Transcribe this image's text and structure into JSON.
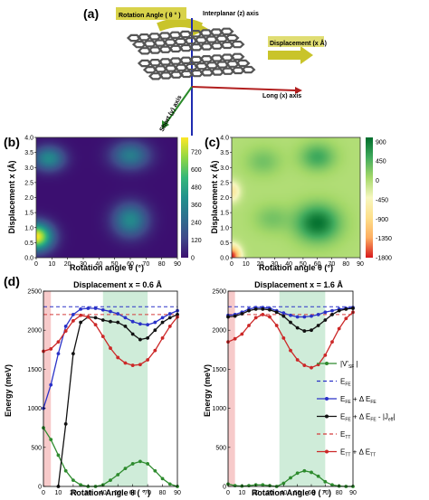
{
  "panel_a": {
    "letter": "(a)",
    "labels": {
      "rotation": "Rotation Angle ( θ ° )",
      "interplanar": "Interplanar (z) axis",
      "displacement": "Displacement (x Å)",
      "long_axis": "Long (x) axis",
      "short_axis": "Short (y) axis"
    },
    "colors": {
      "rotation_arrow": "#c9c42a",
      "z_axis": "#1f2bb0",
      "x_axis": "#b21f1f",
      "y_axis": "#2a8a2a"
    }
  },
  "chart_data": [
    {
      "id": "b",
      "letter": "(b)",
      "type": "heatmap",
      "xlabel": "Rotation angle θ (°)",
      "ylabel": "Displacement x (Å)",
      "x_ticks": [
        0,
        10,
        20,
        30,
        40,
        50,
        60,
        70,
        80,
        90
      ],
      "y_ticks": [
        "0.0",
        "0.5",
        "1.0",
        "1.5",
        "2.0",
        "2.5",
        "3.0",
        "3.5",
        "4.0"
      ],
      "xlim": [
        0,
        90
      ],
      "ylim": [
        0.0,
        4.0
      ],
      "colorbar": {
        "ticks": [
          0,
          120,
          240,
          360,
          480,
          600,
          720
        ],
        "range": [
          0,
          820
        ],
        "colors": [
          "#3b0f70",
          "#3f4a8a",
          "#2e6f8e",
          "#21918c",
          "#35b779",
          "#90d743",
          "#fde725"
        ]
      },
      "blobs": [
        {
          "x": 0,
          "y": 0.7,
          "value": 820,
          "sx": 10,
          "sy": 0.45
        },
        {
          "x": 8,
          "y": 3.3,
          "value": 380,
          "sx": 10,
          "sy": 0.4
        },
        {
          "x": 60,
          "y": 3.4,
          "value": 330,
          "sx": 12,
          "sy": 0.45
        },
        {
          "x": 60,
          "y": 1.25,
          "value": 380,
          "sx": 11,
          "sy": 0.55
        }
      ]
    },
    {
      "id": "c",
      "letter": "(c)",
      "type": "heatmap",
      "xlabel": "Rotation angle θ (°)",
      "ylabel": "Displacement x (Å)",
      "x_ticks": [
        0,
        10,
        20,
        30,
        40,
        50,
        60,
        70,
        80,
        90
      ],
      "y_ticks": [
        "0.0",
        "0.5",
        "1.0",
        "1.5",
        "2.0",
        "2.5",
        "3.0",
        "3.5",
        "4.0"
      ],
      "xlim": [
        0,
        90
      ],
      "ylim": [
        0.0,
        4.0
      ],
      "colorbar": {
        "ticks": [
          900,
          450,
          0,
          -450,
          -900,
          -1350,
          -1800
        ],
        "range": [
          -1800,
          1000
        ],
        "colors": [
          "#d7191c",
          "#fdae61",
          "#fee08b",
          "#f7f7c0",
          "#a6d96a",
          "#41ab5d",
          "#006d2c"
        ]
      },
      "blobs": [
        {
          "x": 0,
          "y": 0.05,
          "value": -1800,
          "sx": 6,
          "sy": 0.35
        },
        {
          "x": 0,
          "y": 2.2,
          "value": -700,
          "sx": 6,
          "sy": 0.35
        },
        {
          "x": 60,
          "y": 1.15,
          "value": 950,
          "sx": 15,
          "sy": 0.6
        },
        {
          "x": 60,
          "y": 3.35,
          "value": 550,
          "sx": 12,
          "sy": 0.45
        },
        {
          "x": 22,
          "y": 3.2,
          "value": 300,
          "sx": 12,
          "sy": 0.45
        },
        {
          "x": 28,
          "y": 1.3,
          "value": 280,
          "sx": 12,
          "sy": 0.45
        }
      ]
    },
    {
      "id": "d1",
      "letter": "(d)",
      "type": "line",
      "title": "Displacement x = 0.6 Å",
      "xlabel": "Rotation Angle θ ( ° )",
      "ylabel": "Energy (meV)",
      "x_ticks": [
        0,
        10,
        20,
        30,
        40,
        50,
        60,
        70,
        80,
        90
      ],
      "y_ticks": [
        0,
        500,
        1000,
        1500,
        2000,
        2500
      ],
      "xlim": [
        0,
        90
      ],
      "ylim": [
        0,
        2500
      ],
      "shade_red": [
        0,
        5
      ],
      "shade_green": [
        40,
        70
      ],
      "dashed": [
        {
          "key": "E_FE",
          "y": 2300,
          "color": "#2a32c8"
        },
        {
          "key": "E_TT",
          "y": 2200,
          "color": "#d43c3c"
        }
      ],
      "x": [
        0,
        5,
        10,
        15,
        20,
        25,
        30,
        35,
        40,
        45,
        50,
        55,
        60,
        65,
        70,
        75,
        80,
        85,
        90
      ],
      "series": [
        {
          "key": "V",
          "color": "#2e8b2e",
          "values": [
            750,
            600,
            400,
            200,
            80,
            20,
            0,
            0,
            20,
            80,
            150,
            230,
            290,
            320,
            290,
            200,
            100,
            30,
            0
          ]
        },
        {
          "key": "FE_plus",
          "color": "#2a32c8",
          "values": [
            1000,
            1300,
            1700,
            2050,
            2200,
            2270,
            2280,
            2280,
            2260,
            2240,
            2210,
            2160,
            2110,
            2080,
            2070,
            2100,
            2160,
            2210,
            2250
          ]
        },
        {
          "key": "FE_minus",
          "color": "#111111",
          "values": [
            null,
            null,
            0,
            800,
            1700,
            2100,
            2170,
            2160,
            2130,
            2110,
            2100,
            2050,
            1950,
            1880,
            1900,
            2000,
            2100,
            2160,
            2200
          ]
        },
        {
          "key": "TT_plus",
          "color": "#cc2828",
          "values": [
            1730,
            1760,
            1850,
            1990,
            2120,
            2190,
            2170,
            2070,
            1920,
            1770,
            1650,
            1580,
            1550,
            1560,
            1620,
            1740,
            1900,
            2050,
            2170
          ]
        }
      ]
    },
    {
      "id": "d2",
      "type": "line",
      "title": "Displacement x = 1.6 Å",
      "xlabel": "Rotation Angle θ ( ° )",
      "ylabel": "Energy (meV)",
      "x_ticks": [
        0,
        10,
        20,
        30,
        40,
        50,
        60,
        70,
        80,
        90
      ],
      "y_ticks": [
        0,
        500,
        1000,
        1500,
        2000,
        2500
      ],
      "xlim": [
        0,
        90
      ],
      "ylim": [
        0,
        2500
      ],
      "shade_red": [
        0,
        5
      ],
      "shade_green": [
        37,
        70
      ],
      "dashed": [
        {
          "key": "E_FE",
          "y": 2300,
          "color": "#2a32c8"
        },
        {
          "key": "E_TT",
          "y": 2200,
          "color": "#d43c3c"
        }
      ],
      "x": [
        0,
        5,
        10,
        15,
        20,
        25,
        30,
        35,
        40,
        45,
        50,
        55,
        60,
        65,
        70,
        75,
        80,
        85,
        90
      ],
      "series": [
        {
          "key": "V",
          "color": "#2e8b2e",
          "values": [
            30,
            10,
            5,
            10,
            20,
            20,
            10,
            0,
            40,
            110,
            170,
            200,
            180,
            130,
            60,
            20,
            5,
            0,
            0
          ]
        },
        {
          "key": "FE_plus",
          "color": "#2a32c8",
          "values": [
            2190,
            2200,
            2230,
            2270,
            2290,
            2290,
            2280,
            2250,
            2220,
            2190,
            2170,
            2170,
            2180,
            2200,
            2230,
            2250,
            2270,
            2280,
            2290
          ]
        },
        {
          "key": "FE_minus",
          "color": "#111111",
          "values": [
            2170,
            2180,
            2210,
            2250,
            2270,
            2270,
            2260,
            2230,
            2180,
            2100,
            2030,
            1990,
            2000,
            2060,
            2130,
            2200,
            2250,
            2270,
            2280
          ]
        },
        {
          "key": "TT_plus",
          "color": "#cc2828",
          "values": [
            1850,
            1890,
            1950,
            2060,
            2160,
            2200,
            2170,
            2060,
            1900,
            1740,
            1620,
            1550,
            1520,
            1560,
            1680,
            1850,
            2020,
            2150,
            2230
          ]
        }
      ]
    }
  ],
  "legend": [
    {
      "key": "V",
      "style": "marker",
      "color": "#2e8b2e",
      "main": "|V",
      "sub": "SF",
      "rest": "|",
      "prime": "'"
    },
    {
      "key": "E_FE",
      "style": "dash",
      "color": "#2a32c8",
      "main": "E",
      "sub": "FE",
      "rest": ""
    },
    {
      "key": "FE_plus",
      "style": "marker",
      "color": "#2a32c8",
      "main": "E",
      "sub": "FE",
      "rest": "+ Δ E",
      "sub2": "FE"
    },
    {
      "key": "FE_minus",
      "style": "marker",
      "color": "#111111",
      "main": "E",
      "sub": "FE",
      "rest": "+ Δ E",
      "sub2": "FE",
      "rest2": " - |J",
      "sub3": "eff",
      "rest3": "|"
    },
    {
      "key": "E_TT",
      "style": "dash",
      "color": "#d43c3c",
      "main": "E",
      "sub": "TT",
      "rest": ""
    },
    {
      "key": "TT_plus",
      "style": "marker",
      "color": "#cc2828",
      "main": "E",
      "sub": "TT",
      "rest": "+ Δ E",
      "sub2": "TT"
    }
  ]
}
